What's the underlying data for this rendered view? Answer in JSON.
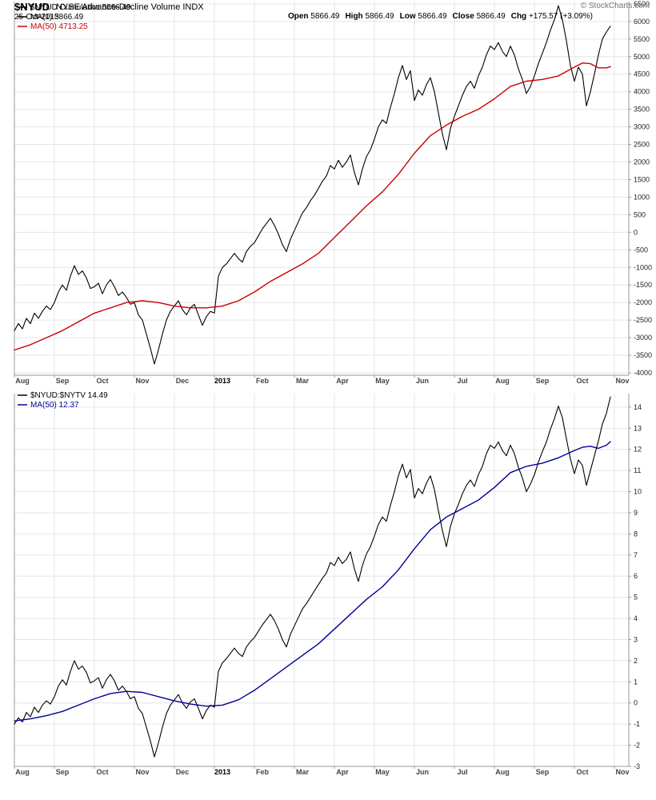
{
  "header": {
    "symbol": "$NYUD",
    "title": "NYSE Advance-Decline Volume INDX",
    "date": "25-Oct-2013",
    "copyright": "© StockCharts.com",
    "quote": [
      {
        "label": "Open",
        "value": "5866.49"
      },
      {
        "label": "High",
        "value": "5866.49"
      },
      {
        "label": "Low",
        "value": "5866.49"
      },
      {
        "label": "Close",
        "value": "5866.49"
      },
      {
        "label": "Chg",
        "value": "+175.57 (+3.09%)"
      }
    ]
  },
  "colors": {
    "main_line": "#000000",
    "ma50_upper": "#cc0000",
    "ma50_lower": "#000099",
    "grid": "#e6e6e6",
    "axis_line": "#999999",
    "tick_label": "#222222",
    "month_label": "#444444",
    "year_label": "#000000"
  },
  "chart_data": [
    {
      "type": "line",
      "panel": "upper",
      "legend": [
        {
          "label": "$NYUD Cumulative 5866.49",
          "color": "#000000"
        },
        {
          "label": "MA(1) 5866.49",
          "color": "#000000"
        },
        {
          "label": "MA(50) 4713.25",
          "color": "#cc0000"
        }
      ],
      "x_axis": {
        "labels": [
          "Aug",
          "Sep",
          "Oct",
          "Nov",
          "Dec",
          "2013",
          "Feb",
          "Mar",
          "Apr",
          "May",
          "Jun",
          "Jul",
          "Aug",
          "Sep",
          "Oct",
          "Nov"
        ],
        "bold_label": "2013",
        "unit": "months-from-Aug-2012",
        "range": [
          0,
          15.36
        ]
      },
      "y_axis": {
        "min": -4000,
        "max": 6500,
        "tick_step": 500
      },
      "last_values": {
        "close": 5866.49,
        "ma1": 5866.49,
        "ma50": 4713.25
      },
      "series": [
        {
          "id": "nyud-cumulative",
          "name": "$NYUD Cumulative",
          "color": "#000000",
          "width": 1.1,
          "x_start": 0,
          "x_step": 0.1,
          "values": [
            -2800,
            -2600,
            -2750,
            -2450,
            -2600,
            -2300,
            -2450,
            -2250,
            -2100,
            -2200,
            -2000,
            -1700,
            -1500,
            -1650,
            -1250,
            -950,
            -1200,
            -1100,
            -1300,
            -1600,
            -1550,
            -1450,
            -1750,
            -1500,
            -1350,
            -1550,
            -1800,
            -1700,
            -1850,
            -2050,
            -2000,
            -2350,
            -2500,
            -2900,
            -3300,
            -3750,
            -3350,
            -2900,
            -2500,
            -2250,
            -2100,
            -1950,
            -2200,
            -2350,
            -2150,
            -2050,
            -2350,
            -2650,
            -2400,
            -2250,
            -2300,
            -1250,
            -1000,
            -900,
            -750,
            -600,
            -750,
            -850,
            -550,
            -400,
            -300,
            -100,
            100,
            250,
            400,
            200,
            -50,
            -350,
            -550,
            -200,
            50,
            300,
            550,
            700,
            900,
            1050,
            1250,
            1450,
            1600,
            1900,
            1800,
            2050,
            1850,
            2000,
            2200,
            1700,
            1350,
            1800,
            2150,
            2350,
            2650,
            3000,
            3200,
            3100,
            3550,
            3950,
            4400,
            4750,
            4350,
            4600,
            3750,
            4050,
            3900,
            4200,
            4400,
            4000,
            3400,
            2800,
            2350,
            2950,
            3300,
            3600,
            3900,
            4150,
            4300,
            4100,
            4450,
            4700,
            5050,
            5300,
            5200,
            5400,
            5150,
            5000,
            5300,
            5050,
            4650,
            4350,
            3950,
            4150,
            4450,
            4800,
            5100,
            5400,
            5750,
            6050,
            6450,
            6050,
            5450,
            4750,
            4300,
            4700,
            4500,
            3600,
            4000,
            4500,
            5050,
            5500,
            5700,
            5866.49
          ]
        },
        {
          "id": "ma50-upper",
          "name": "MA(50)",
          "color": "#cc0000",
          "width": 1.4,
          "points": [
            [
              0,
              -3350
            ],
            [
              0.4,
              -3200
            ],
            [
              0.8,
              -3000
            ],
            [
              1.2,
              -2800
            ],
            [
              1.6,
              -2550
            ],
            [
              2.0,
              -2300
            ],
            [
              2.4,
              -2150
            ],
            [
              2.8,
              -2000
            ],
            [
              3.2,
              -1950
            ],
            [
              3.6,
              -2000
            ],
            [
              4.0,
              -2100
            ],
            [
              4.4,
              -2150
            ],
            [
              4.8,
              -2150
            ],
            [
              5.2,
              -2100
            ],
            [
              5.6,
              -1950
            ],
            [
              6.0,
              -1700
            ],
            [
              6.4,
              -1400
            ],
            [
              6.8,
              -1150
            ],
            [
              7.2,
              -900
            ],
            [
              7.6,
              -600
            ],
            [
              8.0,
              -150
            ],
            [
              8.4,
              300
            ],
            [
              8.8,
              750
            ],
            [
              9.2,
              1150
            ],
            [
              9.6,
              1650
            ],
            [
              10.0,
              2250
            ],
            [
              10.4,
              2750
            ],
            [
              10.8,
              3050
            ],
            [
              11.2,
              3300
            ],
            [
              11.6,
              3500
            ],
            [
              12.0,
              3800
            ],
            [
              12.4,
              4150
            ],
            [
              12.8,
              4300
            ],
            [
              13.2,
              4350
            ],
            [
              13.6,
              4450
            ],
            [
              14.0,
              4700
            ],
            [
              14.2,
              4820
            ],
            [
              14.4,
              4800
            ],
            [
              14.6,
              4680
            ],
            [
              14.8,
              4680
            ],
            [
              14.9,
              4713.25
            ]
          ]
        }
      ]
    },
    {
      "type": "line",
      "panel": "lower",
      "legend": [
        {
          "label": "$NYUD:$NYTV 14.49",
          "color": "#000000"
        },
        {
          "label": "MA(50) 12.37",
          "color": "#000099"
        }
      ],
      "x_axis": {
        "labels": [
          "Aug",
          "Sep",
          "Oct",
          "Nov",
          "Dec",
          "2013",
          "Feb",
          "Mar",
          "Apr",
          "May",
          "Jun",
          "Jul",
          "Aug",
          "Sep",
          "Oct",
          "Nov"
        ],
        "bold_label": "2013",
        "unit": "months-from-Aug-2012",
        "range": [
          0,
          15.36
        ]
      },
      "y_axis": {
        "min": -3,
        "max": 14,
        "tick_step": 1
      },
      "last_values": {
        "ratio": 14.49,
        "ma50": 12.37
      },
      "series": [
        {
          "id": "nyud-nytv-ratio",
          "name": "$NYUD:$NYTV",
          "color": "#000000",
          "width": 1.1,
          "x_start": 0,
          "x_step": 0.1,
          "values": [
            -1.0,
            -0.7,
            -0.9,
            -0.45,
            -0.65,
            -0.2,
            -0.45,
            -0.1,
            0.1,
            -0.05,
            0.3,
            0.8,
            1.1,
            0.85,
            1.5,
            2.0,
            1.6,
            1.75,
            1.45,
            0.95,
            1.05,
            1.2,
            0.7,
            1.1,
            1.35,
            1.05,
            0.6,
            0.8,
            0.55,
            0.2,
            0.3,
            -0.25,
            -0.5,
            -1.15,
            -1.8,
            -2.55,
            -1.9,
            -1.15,
            -0.5,
            -0.1,
            0.15,
            0.4,
            0.0,
            -0.25,
            0.05,
            0.2,
            -0.25,
            -0.75,
            -0.35,
            -0.1,
            -0.2,
            1.5,
            1.9,
            2.1,
            2.35,
            2.6,
            2.35,
            2.2,
            2.65,
            2.9,
            3.1,
            3.4,
            3.7,
            3.95,
            4.2,
            3.9,
            3.5,
            3.0,
            2.65,
            3.25,
            3.65,
            4.05,
            4.45,
            4.7,
            5.0,
            5.3,
            5.6,
            5.9,
            6.15,
            6.65,
            6.5,
            6.9,
            6.6,
            6.8,
            7.15,
            6.35,
            5.75,
            6.5,
            7.05,
            7.4,
            7.9,
            8.45,
            8.8,
            8.6,
            9.35,
            10.0,
            10.75,
            11.3,
            10.65,
            11.05,
            9.7,
            10.15,
            9.9,
            10.4,
            10.75,
            10.1,
            9.1,
            8.15,
            7.4,
            8.35,
            8.95,
            9.4,
            9.9,
            10.3,
            10.55,
            10.25,
            10.8,
            11.2,
            11.8,
            12.2,
            12.05,
            12.35,
            11.95,
            11.7,
            12.2,
            11.8,
            11.15,
            10.65,
            10.0,
            10.35,
            10.8,
            11.4,
            11.9,
            12.35,
            12.95,
            13.45,
            14.05,
            13.5,
            12.5,
            11.55,
            10.85,
            11.5,
            11.25,
            10.3,
            11.0,
            11.7,
            12.4,
            13.2,
            13.7,
            14.49
          ]
        },
        {
          "id": "ma50-lower",
          "name": "MA(50)",
          "color": "#000099",
          "width": 1.4,
          "points": [
            [
              0,
              -0.85
            ],
            [
              0.4,
              -0.75
            ],
            [
              0.8,
              -0.6
            ],
            [
              1.2,
              -0.4
            ],
            [
              1.6,
              -0.1
            ],
            [
              2.0,
              0.2
            ],
            [
              2.4,
              0.45
            ],
            [
              2.8,
              0.55
            ],
            [
              3.2,
              0.5
            ],
            [
              3.6,
              0.3
            ],
            [
              4.0,
              0.1
            ],
            [
              4.4,
              -0.05
            ],
            [
              4.8,
              -0.15
            ],
            [
              5.2,
              -0.1
            ],
            [
              5.6,
              0.15
            ],
            [
              6.0,
              0.6
            ],
            [
              6.4,
              1.15
            ],
            [
              6.8,
              1.7
            ],
            [
              7.2,
              2.25
            ],
            [
              7.6,
              2.8
            ],
            [
              8.0,
              3.5
            ],
            [
              8.4,
              4.2
            ],
            [
              8.8,
              4.9
            ],
            [
              9.2,
              5.5
            ],
            [
              9.6,
              6.3
            ],
            [
              10.0,
              7.3
            ],
            [
              10.4,
              8.2
            ],
            [
              10.8,
              8.8
            ],
            [
              11.2,
              9.2
            ],
            [
              11.6,
              9.6
            ],
            [
              12.0,
              10.2
            ],
            [
              12.4,
              10.9
            ],
            [
              12.8,
              11.2
            ],
            [
              13.2,
              11.35
            ],
            [
              13.6,
              11.6
            ],
            [
              14.0,
              11.95
            ],
            [
              14.2,
              12.1
            ],
            [
              14.4,
              12.15
            ],
            [
              14.6,
              12.05
            ],
            [
              14.8,
              12.2
            ],
            [
              14.9,
              12.37
            ]
          ]
        }
      ]
    }
  ]
}
